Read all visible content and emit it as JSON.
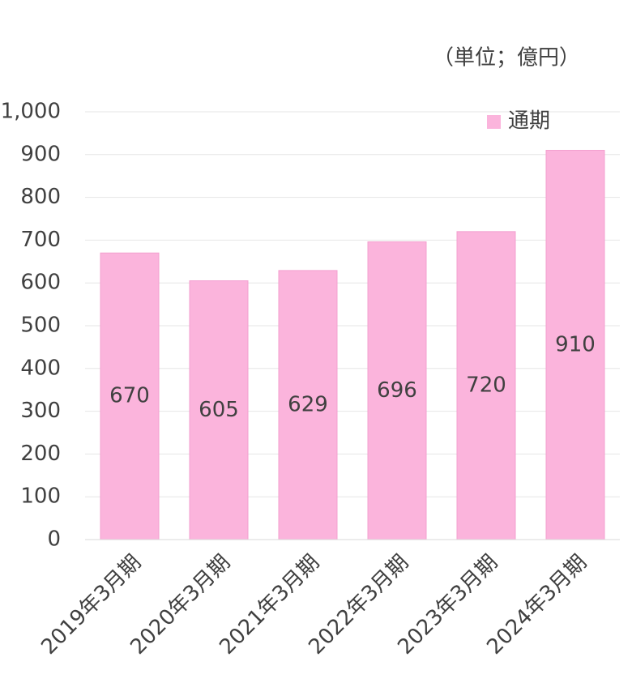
{
  "chart_data": {
    "type": "bar",
    "unit": "（単位；億円）",
    "categories": [
      "2019年3月期",
      "2020年3月期",
      "2021年3月期",
      "2022年3月期",
      "2023年3月期",
      "2024年3月期"
    ],
    "series": [
      {
        "name": "通期",
        "color": "#fbb4dc",
        "values": [
          670,
          605,
          629,
          696,
          720,
          910
        ]
      }
    ],
    "ylim": [
      0,
      1000
    ],
    "yticks": [
      0,
      100,
      200,
      300,
      400,
      500,
      600,
      700,
      800,
      900,
      {
        "value": 1000,
        "label": "1,000"
      }
    ],
    "grid": true,
    "legend": "top-right"
  }
}
